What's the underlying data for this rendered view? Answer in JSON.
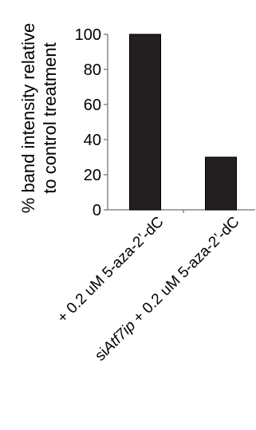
{
  "chart_data": {
    "type": "bar",
    "title": "",
    "ylabel_lines": [
      "% band intensity relative",
      "to control treatment"
    ],
    "xlabel": "",
    "ylim": [
      0,
      100
    ],
    "yticks": [
      0,
      20,
      40,
      60,
      80,
      100
    ],
    "categories": [
      {
        "prefix": "",
        "italic": "",
        "suffix": "+ 0.2 uM 5-aza-2’-dC",
        "full": "+ 0.2 uM 5-aza-2’-dC"
      },
      {
        "prefix": "si",
        "italic": "Atf7ip",
        "suffix": " + 0.2 uM 5-aza-2’-dC",
        "full": "siAtf7ip + 0.2 uM 5-aza-2’-dC"
      }
    ],
    "series": [
      {
        "values": [
          100,
          30
        ]
      }
    ],
    "bar_color": "#231f20",
    "grid": false,
    "legend": false
  }
}
